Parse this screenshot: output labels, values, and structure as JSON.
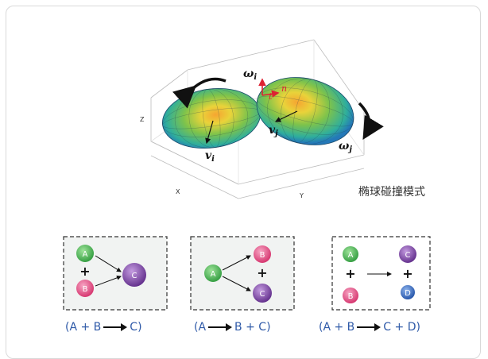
{
  "caption": "椭球碰撞模式",
  "axes": {
    "x": "X",
    "y": "Y",
    "z": "Z"
  },
  "symbols": {
    "omega_i": "ω",
    "omega_i_sub": "i",
    "omega_j": "ω",
    "omega_j_sub": "j",
    "v_i": "v",
    "v_i_sub": "i",
    "v_j": "v",
    "v_j_sub": "j",
    "t": "t",
    "n": "n"
  },
  "schemes": [
    {
      "name": "combine",
      "balls": [
        "A",
        "B",
        "C"
      ],
      "plus": "+",
      "formula": {
        "open": "(",
        "lhs": "A + B",
        "rhs": "C",
        "close": ")"
      }
    },
    {
      "name": "split",
      "balls": [
        "A",
        "B",
        "C"
      ],
      "plus": "+",
      "formula": {
        "open": "(",
        "lhs": "A",
        "rhs": "B + C",
        "close": ")"
      }
    },
    {
      "name": "exchange",
      "balls": [
        "A",
        "B",
        "C",
        "D"
      ],
      "plus": "+",
      "formula": {
        "open": "(",
        "lhs": "A + B",
        "rhs": "C + D",
        "close": ")"
      }
    }
  ],
  "colors": {
    "green": "#3fae49",
    "pink": "#e0457b",
    "purple": "#7a3aa0",
    "blue": "#2f5fb0",
    "formula": "#2f5aa8"
  }
}
